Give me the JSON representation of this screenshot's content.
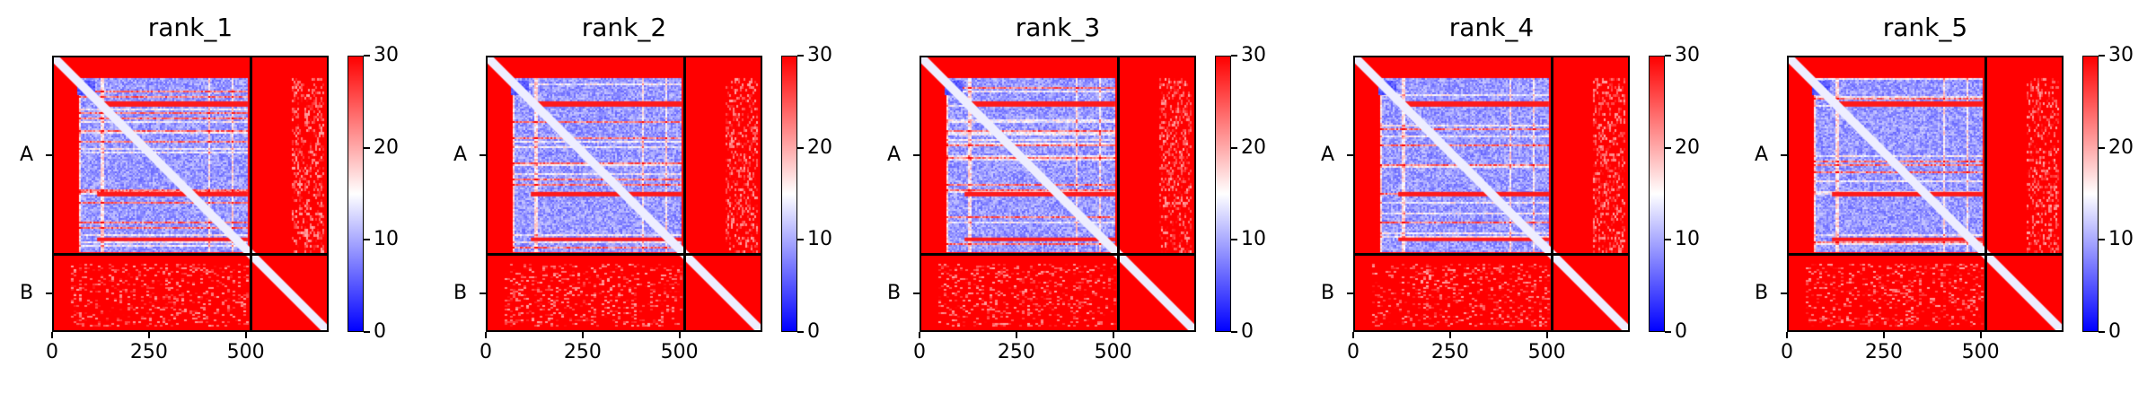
{
  "chart_data": [
    {
      "type": "heatmap",
      "title": "rank_1",
      "x_ticks": [
        0,
        250,
        500
      ],
      "xlim": [
        0,
        714
      ],
      "ylim": [
        0,
        714
      ],
      "chains": [
        {
          "label": "A",
          "start": 0,
          "end": 514
        },
        {
          "label": "B",
          "start": 514,
          "end": 714
        }
      ],
      "colorbar": {
        "min": 0,
        "max": 30,
        "ticks": [
          0,
          10,
          20,
          30
        ],
        "colors": [
          "#0000ff",
          "#ffffff",
          "#ff0000"
        ]
      }
    },
    {
      "type": "heatmap",
      "title": "rank_2",
      "x_ticks": [
        0,
        250,
        500
      ],
      "xlim": [
        0,
        714
      ],
      "ylim": [
        0,
        714
      ],
      "chains": [
        {
          "label": "A",
          "start": 0,
          "end": 514
        },
        {
          "label": "B",
          "start": 514,
          "end": 714
        }
      ],
      "colorbar": {
        "min": 0,
        "max": 30,
        "ticks": [
          0,
          10,
          20,
          30
        ],
        "colors": [
          "#0000ff",
          "#ffffff",
          "#ff0000"
        ]
      }
    },
    {
      "type": "heatmap",
      "title": "rank_3",
      "x_ticks": [
        0,
        250,
        500
      ],
      "xlim": [
        0,
        714
      ],
      "ylim": [
        0,
        714
      ],
      "chains": [
        {
          "label": "A",
          "start": 0,
          "end": 514
        },
        {
          "label": "B",
          "start": 514,
          "end": 714
        }
      ],
      "colorbar": {
        "min": 0,
        "max": 30,
        "ticks": [
          0,
          10,
          20,
          30
        ],
        "colors": [
          "#0000ff",
          "#ffffff",
          "#ff0000"
        ]
      }
    },
    {
      "type": "heatmap",
      "title": "rank_4",
      "x_ticks": [
        0,
        250,
        500
      ],
      "xlim": [
        0,
        714
      ],
      "ylim": [
        0,
        714
      ],
      "chains": [
        {
          "label": "A",
          "start": 0,
          "end": 514
        },
        {
          "label": "B",
          "start": 514,
          "end": 714
        }
      ],
      "colorbar": {
        "min": 0,
        "max": 30,
        "ticks": [
          0,
          10,
          20,
          30
        ],
        "colors": [
          "#0000ff",
          "#ffffff",
          "#ff0000"
        ]
      }
    },
    {
      "type": "heatmap",
      "title": "rank_5",
      "x_ticks": [
        0,
        250,
        500
      ],
      "xlim": [
        0,
        714
      ],
      "ylim": [
        0,
        714
      ],
      "chains": [
        {
          "label": "A",
          "start": 0,
          "end": 514
        },
        {
          "label": "B",
          "start": 514,
          "end": 714
        }
      ],
      "colorbar": {
        "min": 0,
        "max": 30,
        "ticks": [
          0,
          10,
          20,
          30
        ],
        "colors": [
          "#0000ff",
          "#ffffff",
          "#ff0000"
        ]
      }
    }
  ]
}
